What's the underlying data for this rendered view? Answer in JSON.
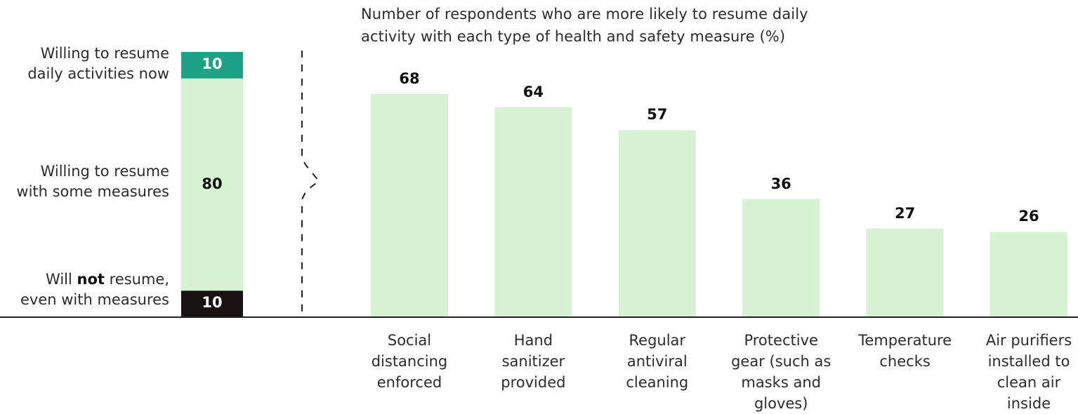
{
  "title": {
    "line1": "Number of respondents who are more likely to resume daily",
    "line2": "activity with each type of health and safety measure (%)"
  },
  "stack": {
    "segments": [
      {
        "key": "now",
        "label_line1": "Willing to resume",
        "label_line2": "daily activities now",
        "value": 10,
        "color": "#1fa187",
        "text_color": "#ffffff"
      },
      {
        "key": "some",
        "label_line1": "Willing to resume",
        "label_line2": "with some measures",
        "value": 80,
        "color": "#d6f2d3",
        "text_color": "#111111"
      },
      {
        "key": "not",
        "label_pre": "Will ",
        "label_bold": "not",
        "label_post": " resume,",
        "label_line2": "even with measures",
        "value": 10,
        "color": "#1a1212",
        "text_color": "#ffffff"
      }
    ]
  },
  "chart_data": {
    "type": "bar",
    "categories": [
      [
        "Social",
        "distancing",
        "enforced"
      ],
      [
        "Hand",
        "sanitizer",
        "provided"
      ],
      [
        "Regular",
        "antiviral",
        "cleaning"
      ],
      [
        "Protective",
        "gear (such as",
        "masks and",
        "gloves)"
      ],
      [
        "Temperature",
        "checks"
      ],
      [
        "Air purifiers",
        "installed to",
        "clean air",
        "inside"
      ]
    ],
    "values": [
      68,
      64,
      57,
      36,
      27,
      26
    ],
    "ylim": [
      0,
      80
    ],
    "bar_color": "#d6f2d3",
    "grid": false
  }
}
